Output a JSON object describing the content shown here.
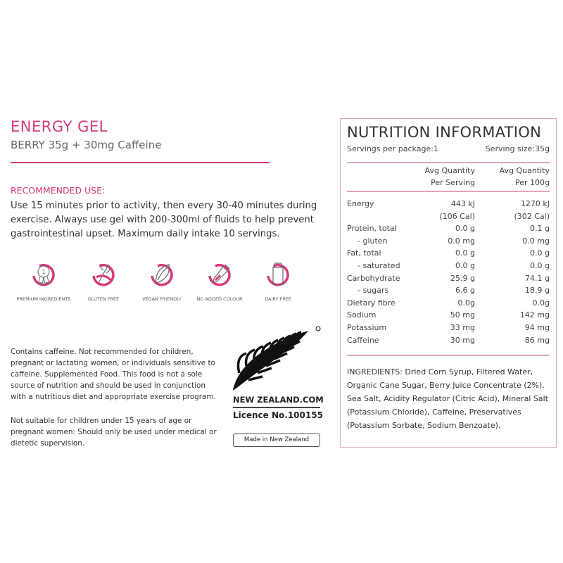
{
  "product": {
    "title": "ENERGY GEL",
    "subtitle": "BERRY 35g + 30mg Caffeine",
    "accent_color": "#d63a7a"
  },
  "recommended_use": {
    "heading": "RECOMMENDED USE:",
    "text": "Use 15 minutes prior to activity, then every 30-40 minutes during exercise. Always use gel with 200-300ml of fluids to help prevent gastrointestinal upset. Maximum daily intake 10 servings."
  },
  "badges": [
    {
      "icon": "ribbon-medal-icon",
      "label": "PREMIUM INGREDIENTS"
    },
    {
      "icon": "wheat-crossed-icon",
      "label": "GLUTEN FREE"
    },
    {
      "icon": "leaf-icon",
      "label": "VEGAN FRIENDLY"
    },
    {
      "icon": "dropper-icon",
      "label": "NO ADDED COLOUR"
    },
    {
      "icon": "milk-carton-icon",
      "label": "DAIRY FREE"
    }
  ],
  "warnings": [
    "Contains caffeine. Not recommended for children, pregnant or lactating women, or individuals sensitive to caffeine. Supplemented Food. This food is not a sole source of nutrition and should be used in conjunction with a nutritious diet and appropriate exercise program.",
    "Not suitable for children under 15 years of age or pregnant women: Should only be used under medical or dietetic supervision."
  ],
  "nz_logo": {
    "site": "NEW ZEALAND.COM",
    "licence": "Licence No.100155",
    "made_in": "Made in New Zealand"
  },
  "nutrition": {
    "title": "NUTRITION INFORMATION",
    "servings_per_package": "Servings per package:1",
    "serving_size": "Serving size:35g",
    "col1_header": [
      "Avg Quantity",
      "Per Serving"
    ],
    "col2_header": [
      "Avg Quantity",
      "Per 100g"
    ],
    "rows": [
      {
        "label": "Energy",
        "per_serving": "443 kJ",
        "per_100g": "1270 kJ"
      },
      {
        "label": "",
        "per_serving": "(106 Cal)",
        "per_100g": "(302 Cal)"
      },
      {
        "label": "Protein, total",
        "per_serving": "0.0 g",
        "per_100g": "0.1 g"
      },
      {
        "label": "- gluten",
        "per_serving": "0.0 mg",
        "per_100g": "0.0 mg",
        "indent": true
      },
      {
        "label": "Fat, total",
        "per_serving": "0.0 g",
        "per_100g": "0.0 g"
      },
      {
        "label": "- saturated",
        "per_serving": "0.0 g",
        "per_100g": "0.0 g",
        "indent": true
      },
      {
        "label": "Carbohydrate",
        "per_serving": "25.9 g",
        "per_100g": "74.1 g"
      },
      {
        "label": "- sugars",
        "per_serving": "6.6 g",
        "per_100g": "18.9 g",
        "indent": true
      },
      {
        "label": "Dietary fibre",
        "per_serving": "0.0g",
        "per_100g": "0.0g"
      },
      {
        "label": "Sodium",
        "per_serving": "50 mg",
        "per_100g": "142 mg"
      },
      {
        "label": "Potassium",
        "per_serving": "33 mg",
        "per_100g": "94 mg"
      },
      {
        "label": "Caffeine",
        "per_serving": "30 mg",
        "per_100g": "86 mg"
      }
    ],
    "ingredients": "INGREDIENTS: Dried Corn Syrup, Filtered Water, Organic Cane Sugar, Berry Juice Concentrate (2%), Sea Salt, Acidity Regulator (Citric Acid), Mineral Salt (Potassium Chloride), Caffeine, Preservatives (Potassium Sorbate, Sodium Benzoate)."
  }
}
